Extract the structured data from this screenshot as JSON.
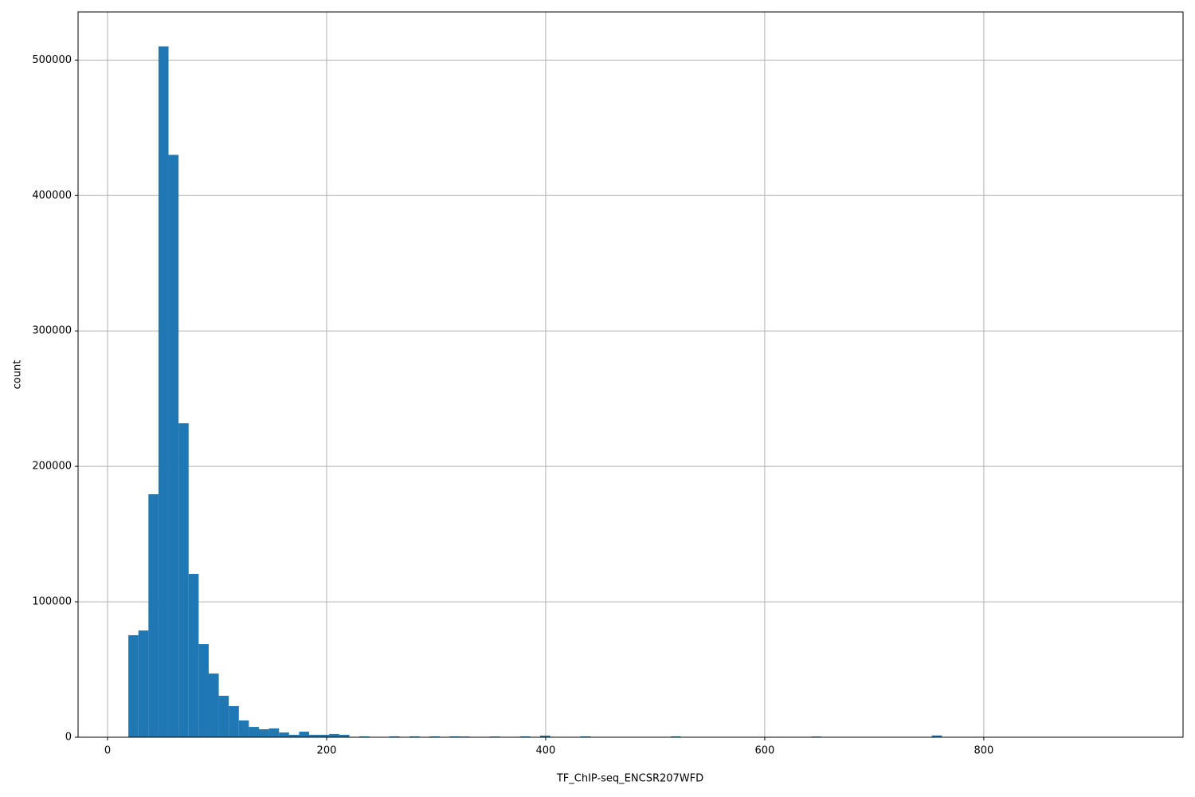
{
  "chart_data": {
    "type": "histogram",
    "x_label": "TF_ChIP-seq_ENCSR207WFD",
    "y_label": "count",
    "color": "#1f77b4",
    "grid": true,
    "bins": [
      19,
      28.17,
      37.34,
      46.51,
      55.68,
      64.85,
      74.02,
      83.19,
      92.36,
      101.53,
      110.7,
      119.87,
      129.04,
      138.21,
      147.38,
      156.55,
      165.72,
      174.89,
      184.06,
      193.23,
      202.4,
      211.57,
      220.74,
      229.91,
      239.08,
      248.25,
      257.42,
      266.59,
      275.76,
      284.93,
      294.1,
      303.27,
      312.44,
      321.61,
      330.78,
      339.95,
      349.12,
      358.29,
      367.46,
      376.63,
      385.8,
      394.97,
      404.14,
      413.31,
      422.48,
      431.65,
      440.82,
      449.99,
      459.16,
      468.33,
      477.5,
      486.67,
      495.84,
      505.01,
      514.18,
      523.35,
      532.52,
      541.69,
      550.86,
      560.03,
      569.2,
      578.37,
      587.54,
      596.71,
      605.88,
      615.05,
      624.22,
      633.39,
      642.56,
      651.73,
      660.9,
      670.07,
      679.24,
      688.41,
      697.58,
      706.75,
      715.92,
      725.09,
      734.26,
      743.43,
      752.6,
      761.77,
      770.94,
      780.11,
      789.28,
      798.45,
      807.62,
      816.79,
      825.96,
      835.13,
      844.3,
      853.47,
      862.64,
      871.81,
      880.98,
      890.15,
      899.32,
      908.49,
      917.66,
      926.83,
      936
    ],
    "counts": [
      75300,
      78800,
      179400,
      510000,
      430000,
      231800,
      120600,
      68800,
      47000,
      30600,
      23000,
      12400,
      7600,
      5900,
      6500,
      3500,
      1800,
      4100,
      1800,
      1800,
      2400,
      1800,
      300,
      600,
      200,
      100,
      600,
      100,
      600,
      100,
      600,
      100,
      600,
      500,
      100,
      100,
      500,
      100,
      100,
      600,
      100,
      1200,
      100,
      0,
      0,
      600,
      0,
      0,
      0,
      0,
      0,
      0,
      0,
      0,
      600,
      0,
      0,
      0,
      0,
      0,
      0,
      0,
      0,
      0,
      0,
      0,
      0,
      0,
      500,
      0,
      0,
      0,
      0,
      0,
      0,
      0,
      0,
      0,
      0,
      0,
      1300,
      0,
      0,
      0,
      0,
      0,
      0,
      0,
      0,
      0,
      0,
      0,
      0,
      0,
      0,
      0,
      0,
      0,
      0,
      100
    ],
    "xlim": [
      -26.9,
      981.9
    ],
    "ylim": [
      0,
      535500
    ],
    "xticks": [
      0,
      200,
      400,
      600,
      800
    ],
    "yticks": [
      0,
      100000,
      200000,
      300000,
      400000,
      500000
    ]
  }
}
